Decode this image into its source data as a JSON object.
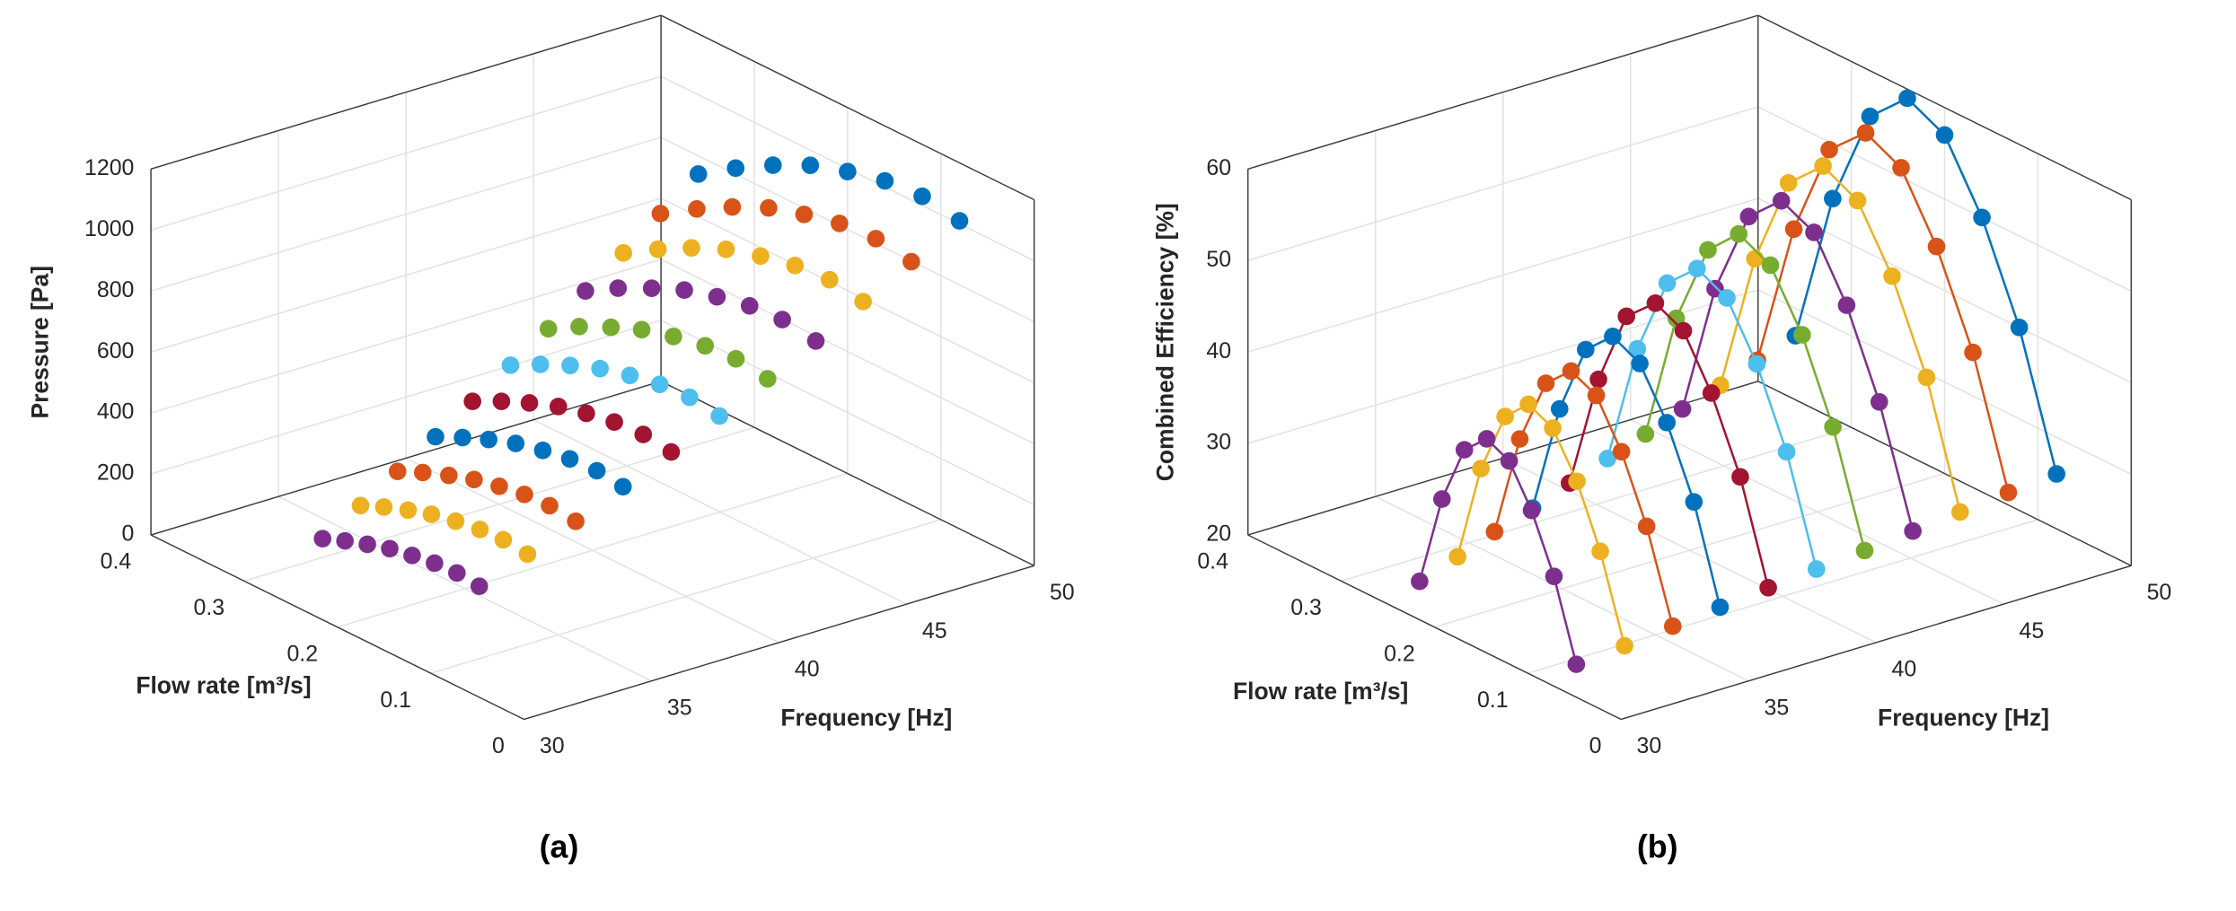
{
  "chart_data": [
    {
      "type": "scatter3d",
      "zlabel": "Pressure [Pa]",
      "ylabel": "Flow rate [m³/s]",
      "xlabel": "Frequency [Hz]",
      "caption": "(a)",
      "xlim": [
        30,
        50
      ],
      "xticks": [
        30,
        35,
        40,
        45,
        50
      ],
      "ylim": [
        0,
        0.4
      ],
      "yticks": [
        0,
        0.1,
        0.2,
        0.3,
        0.4
      ],
      "zlim": [
        0,
        1200
      ],
      "zticks": [
        0,
        200,
        400,
        600,
        800,
        1000,
        1200
      ],
      "grid": true,
      "lines": false,
      "series": [
        {
          "color": "#0072BD",
          "x": 50,
          "y": [
            0.08,
            0.12,
            0.16,
            0.2,
            0.24,
            0.28,
            0.32,
            0.36
          ],
          "values": [
            1010,
            1030,
            1020,
            990,
            950,
            890,
            820,
            740
          ]
        },
        {
          "color": "#D95319",
          "x": 48,
          "y": [
            0.077,
            0.115,
            0.154,
            0.192,
            0.23,
            0.269,
            0.307,
            0.346
          ],
          "values": [
            931,
            949,
            940,
            912,
            876,
            820,
            756,
            682
          ]
        },
        {
          "color": "#EDB120",
          "x": 46,
          "y": [
            0.074,
            0.11,
            0.147,
            0.184,
            0.221,
            0.258,
            0.294,
            0.331
          ],
          "values": [
            855,
            872,
            863,
            838,
            804,
            753,
            694,
            626
          ]
        },
        {
          "color": "#7E2F8E",
          "x": 44,
          "y": [
            0.07,
            0.106,
            0.141,
            0.176,
            0.211,
            0.246,
            0.282,
            0.317
          ],
          "values": [
            782,
            798,
            790,
            767,
            736,
            689,
            635,
            573
          ]
        },
        {
          "color": "#77AC30",
          "x": 42,
          "y": [
            0.067,
            0.101,
            0.134,
            0.168,
            0.202,
            0.235,
            0.269,
            0.302
          ],
          "values": [
            713,
            727,
            720,
            699,
            670,
            628,
            579,
            522
          ]
        },
        {
          "color": "#4DBEEE",
          "x": 40,
          "y": [
            0.064,
            0.096,
            0.128,
            0.16,
            0.192,
            0.224,
            0.256,
            0.288
          ],
          "values": [
            646,
            659,
            653,
            634,
            608,
            570,
            525,
            474
          ]
        },
        {
          "color": "#A2142F",
          "x": 38,
          "y": [
            0.061,
            0.091,
            0.122,
            0.152,
            0.182,
            0.213,
            0.243,
            0.274
          ],
          "values": [
            583,
            595,
            589,
            572,
            549,
            514,
            474,
            427
          ]
        },
        {
          "color": "#0072BD",
          "x": 36,
          "y": [
            0.058,
            0.086,
            0.115,
            0.144,
            0.173,
            0.202,
            0.23,
            0.259
          ],
          "values": [
            524,
            534,
            529,
            513,
            492,
            461,
            425,
            384
          ]
        },
        {
          "color": "#D95319",
          "x": 34,
          "y": [
            0.054,
            0.082,
            0.109,
            0.136,
            0.163,
            0.19,
            0.218,
            0.245
          ],
          "values": [
            467,
            476,
            472,
            458,
            439,
            412,
            379,
            342
          ]
        },
        {
          "color": "#EDB120",
          "x": 32,
          "y": [
            0.051,
            0.077,
            0.102,
            0.128,
            0.154,
            0.179,
            0.205,
            0.23
          ],
          "values": [
            414,
            422,
            418,
            406,
            389,
            365,
            336,
            303
          ]
        },
        {
          "color": "#7E2F8E",
          "x": 30,
          "y": [
            0.048,
            0.072,
            0.096,
            0.12,
            0.144,
            0.168,
            0.192,
            0.216
          ],
          "values": [
            364,
            371,
            367,
            356,
            342,
            320,
            295,
            266
          ]
        }
      ]
    },
    {
      "type": "scatter3d",
      "zlabel": "Combined Efficiency [%]",
      "ylabel": "Flow rate [m³/s]",
      "xlabel": "Frequency [Hz]",
      "caption": "(b)",
      "xlim": [
        30,
        50
      ],
      "xticks": [
        30,
        35,
        40,
        45,
        50
      ],
      "ylim": [
        0,
        0.4
      ],
      "yticks": [
        0,
        0.1,
        0.2,
        0.3,
        0.4
      ],
      "zlim": [
        20,
        60
      ],
      "zticks": [
        20,
        30,
        40,
        50,
        60
      ],
      "grid": true,
      "lines": true,
      "series": [
        {
          "color": "#0072BD",
          "x": 50,
          "y": [
            0.08,
            0.12,
            0.16,
            0.2,
            0.24,
            0.28,
            0.32,
            0.36
          ],
          "values": [
            26,
            40,
            50,
            57,
            59,
            55,
            44,
            27
          ]
        },
        {
          "color": "#D95319",
          "x": 48,
          "y": [
            0.077,
            0.115,
            0.154,
            0.192,
            0.23,
            0.269,
            0.307,
            0.346
          ],
          "values": [
            25.8,
            39.2,
            48.8,
            55.5,
            57.4,
            53.6,
            43,
            26.7
          ]
        },
        {
          "color": "#EDB120",
          "x": 46,
          "y": [
            0.074,
            0.11,
            0.147,
            0.184,
            0.221,
            0.258,
            0.294,
            0.331
          ],
          "values": [
            25.5,
            38.4,
            47.6,
            54,
            55.9,
            52.2,
            42.1,
            26.4
          ]
        },
        {
          "color": "#7E2F8E",
          "x": 44,
          "y": [
            0.07,
            0.106,
            0.141,
            0.176,
            0.211,
            0.246,
            0.282,
            0.317
          ],
          "values": [
            25.3,
            37.6,
            46.4,
            52.6,
            54.3,
            50.8,
            41.1,
            26.2
          ]
        },
        {
          "color": "#77AC30",
          "x": 42,
          "y": [
            0.067,
            0.101,
            0.134,
            0.168,
            0.202,
            0.235,
            0.269,
            0.302
          ],
          "values": [
            25,
            36.8,
            45.2,
            51.1,
            52.8,
            49.4,
            40.2,
            25.9
          ]
        },
        {
          "color": "#4DBEEE",
          "x": 40,
          "y": [
            0.064,
            0.096,
            0.128,
            0.16,
            0.192,
            0.224,
            0.256,
            0.288
          ],
          "values": [
            24.8,
            36,
            44,
            49.6,
            51.2,
            48,
            39.2,
            25.6
          ]
        },
        {
          "color": "#A2142F",
          "x": 38,
          "y": [
            0.061,
            0.091,
            0.122,
            0.152,
            0.182,
            0.213,
            0.243,
            0.274
          ],
          "values": [
            24.6,
            35.2,
            42.8,
            48.1,
            49.6,
            46.6,
            38.2,
            25.3
          ]
        },
        {
          "color": "#0072BD",
          "x": 36,
          "y": [
            0.058,
            0.086,
            0.115,
            0.144,
            0.173,
            0.202,
            0.23,
            0.259
          ],
          "values": [
            24.3,
            34.4,
            41.6,
            46.6,
            48.1,
            45.2,
            37.3,
            25
          ]
        },
        {
          "color": "#D95319",
          "x": 34,
          "y": [
            0.054,
            0.082,
            0.109,
            0.136,
            0.163,
            0.19,
            0.218,
            0.245
          ],
          "values": [
            24.1,
            33.6,
            40.4,
            45.2,
            46.5,
            43.8,
            36.3,
            24.8
          ]
        },
        {
          "color": "#EDB120",
          "x": 32,
          "y": [
            0.051,
            0.077,
            0.102,
            0.128,
            0.154,
            0.179,
            0.205,
            0.23
          ],
          "values": [
            23.8,
            32.8,
            39.2,
            43.7,
            45,
            42.4,
            35.4,
            24.5
          ]
        },
        {
          "color": "#7E2F8E",
          "x": 30,
          "y": [
            0.048,
            0.072,
            0.096,
            0.12,
            0.144,
            0.168,
            0.192,
            0.216
          ],
          "values": [
            23.6,
            32,
            38,
            42.2,
            43.4,
            41,
            34.4,
            24.2
          ]
        }
      ]
    }
  ]
}
